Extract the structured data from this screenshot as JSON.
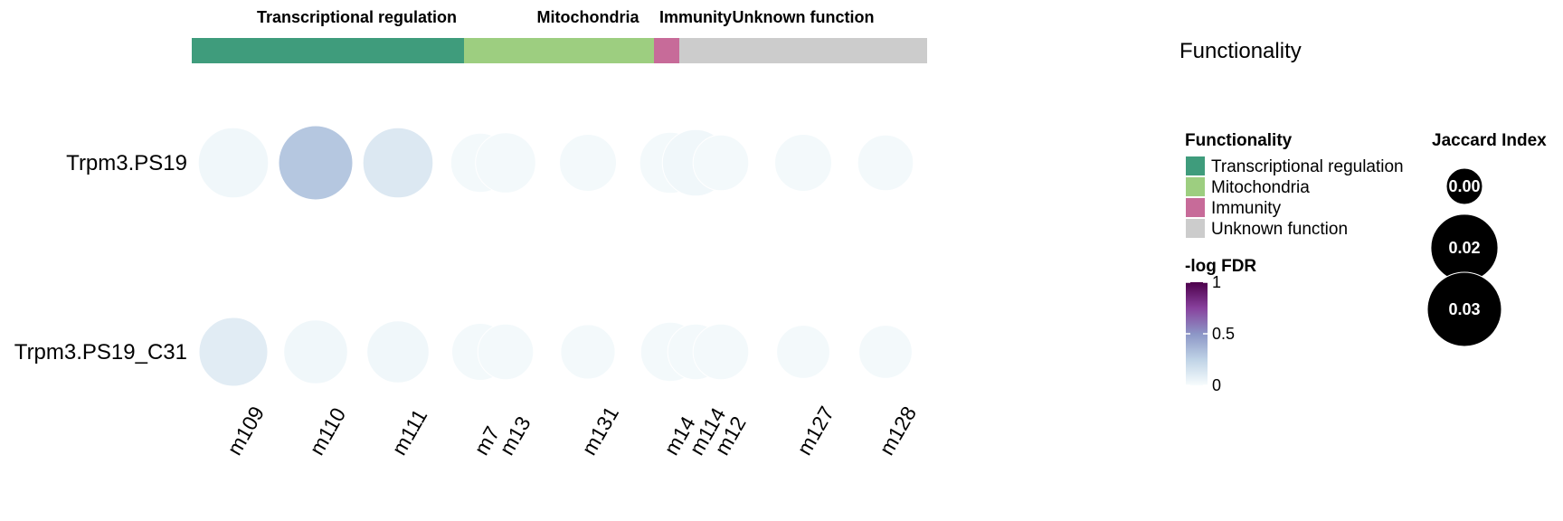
{
  "chart_data": {
    "type": "scatter",
    "groups": [
      {
        "name": "Transcriptional regulation",
        "color": "#3f9c7c",
        "modules": [
          "m109",
          "m110",
          "m111",
          "m7"
        ]
      },
      {
        "name": "Mitochondria",
        "color": "#9dce80",
        "modules": [
          "m13",
          "m131",
          "m14"
        ]
      },
      {
        "name": "Immunity",
        "color": "#c76b99",
        "modules": [
          "m114"
        ]
      },
      {
        "name": "Unknown function",
        "color": "#cccccc",
        "modules": [
          "m12",
          "m127",
          "m128"
        ]
      }
    ],
    "functionality_label": "Functionality",
    "rows": [
      "Trpm3.PS19",
      "Trpm3.PS19_C31"
    ],
    "columns": [
      "m109",
      "m110",
      "m111",
      "m7",
      "m13",
      "m131",
      "m14",
      "m114",
      "m12",
      "m127",
      "m128"
    ],
    "points": [
      {
        "row": "Trpm3.PS19",
        "col": "m109",
        "jaccard": 0.024,
        "neg_log_fdr": 0.03
      },
      {
        "row": "Trpm3.PS19",
        "col": "m110",
        "jaccard": 0.03,
        "neg_log_fdr": 0.3
      },
      {
        "row": "Trpm3.PS19",
        "col": "m111",
        "jaccard": 0.024,
        "neg_log_fdr": 0.12
      },
      {
        "row": "Trpm3.PS19",
        "col": "m7",
        "jaccard": 0.011,
        "neg_log_fdr": 0.02
      },
      {
        "row": "Trpm3.PS19",
        "col": "m13",
        "jaccard": 0.012,
        "neg_log_fdr": 0.02
      },
      {
        "row": "Trpm3.PS19",
        "col": "m131",
        "jaccard": 0.009,
        "neg_log_fdr": 0.02
      },
      {
        "row": "Trpm3.PS19",
        "col": "m14",
        "jaccard": 0.013,
        "neg_log_fdr": 0.02
      },
      {
        "row": "Trpm3.PS19",
        "col": "m114",
        "jaccard": 0.019,
        "neg_log_fdr": 0.03
      },
      {
        "row": "Trpm3.PS19",
        "col": "m12",
        "jaccard": 0.008,
        "neg_log_fdr": 0.02
      },
      {
        "row": "Trpm3.PS19",
        "col": "m127",
        "jaccard": 0.009,
        "neg_log_fdr": 0.02
      },
      {
        "row": "Trpm3.PS19",
        "col": "m128",
        "jaccard": 0.008,
        "neg_log_fdr": 0.02
      },
      {
        "row": "Trpm3.PS19_C31",
        "col": "m109",
        "jaccard": 0.022,
        "neg_log_fdr": 0.1
      },
      {
        "row": "Trpm3.PS19_C31",
        "col": "m110",
        "jaccard": 0.016,
        "neg_log_fdr": 0.03
      },
      {
        "row": "Trpm3.PS19_C31",
        "col": "m111",
        "jaccard": 0.014,
        "neg_log_fdr": 0.03
      },
      {
        "row": "Trpm3.PS19_C31",
        "col": "m7",
        "jaccard": 0.009,
        "neg_log_fdr": 0.02
      },
      {
        "row": "Trpm3.PS19_C31",
        "col": "m13",
        "jaccard": 0.008,
        "neg_log_fdr": 0.02
      },
      {
        "row": "Trpm3.PS19_C31",
        "col": "m131",
        "jaccard": 0.007,
        "neg_log_fdr": 0.02
      },
      {
        "row": "Trpm3.PS19_C31",
        "col": "m14",
        "jaccard": 0.011,
        "neg_log_fdr": 0.02
      },
      {
        "row": "Trpm3.PS19_C31",
        "col": "m114",
        "jaccard": 0.008,
        "neg_log_fdr": 0.02
      },
      {
        "row": "Trpm3.PS19_C31",
        "col": "m12",
        "jaccard": 0.008,
        "neg_log_fdr": 0.02
      },
      {
        "row": "Trpm3.PS19_C31",
        "col": "m127",
        "jaccard": 0.006,
        "neg_log_fdr": 0.02
      },
      {
        "row": "Trpm3.PS19_C31",
        "col": "m128",
        "jaccard": 0.006,
        "neg_log_fdr": 0.02
      }
    ],
    "legend_functionality": {
      "title": "Functionality",
      "items": [
        {
          "label": "Transcriptional regulation",
          "color": "#3f9c7c"
        },
        {
          "label": "Mitochondria",
          "color": "#9dce80"
        },
        {
          "label": "Immunity",
          "color": "#c76b99"
        },
        {
          "label": "Unknown function",
          "color": "#cccccc"
        }
      ]
    },
    "legend_color": {
      "title": "-log FDR",
      "range": [
        0,
        1
      ],
      "ticks": [
        {
          "value": 1,
          "label": "1"
        },
        {
          "value": 0.5,
          "label": "0.5"
        },
        {
          "value": 0,
          "label": "0"
        }
      ],
      "colors": [
        "#f7fcfd",
        "#bfd3e6",
        "#8c96c6",
        "#88419d",
        "#4d004b"
      ]
    },
    "legend_size": {
      "title": "Jaccard Index",
      "items": [
        {
          "value": 0.0,
          "label": "0.00"
        },
        {
          "value": 0.02,
          "label": "0.02"
        },
        {
          "value": 0.03,
          "label": "0.03"
        }
      ]
    },
    "grid": false
  }
}
